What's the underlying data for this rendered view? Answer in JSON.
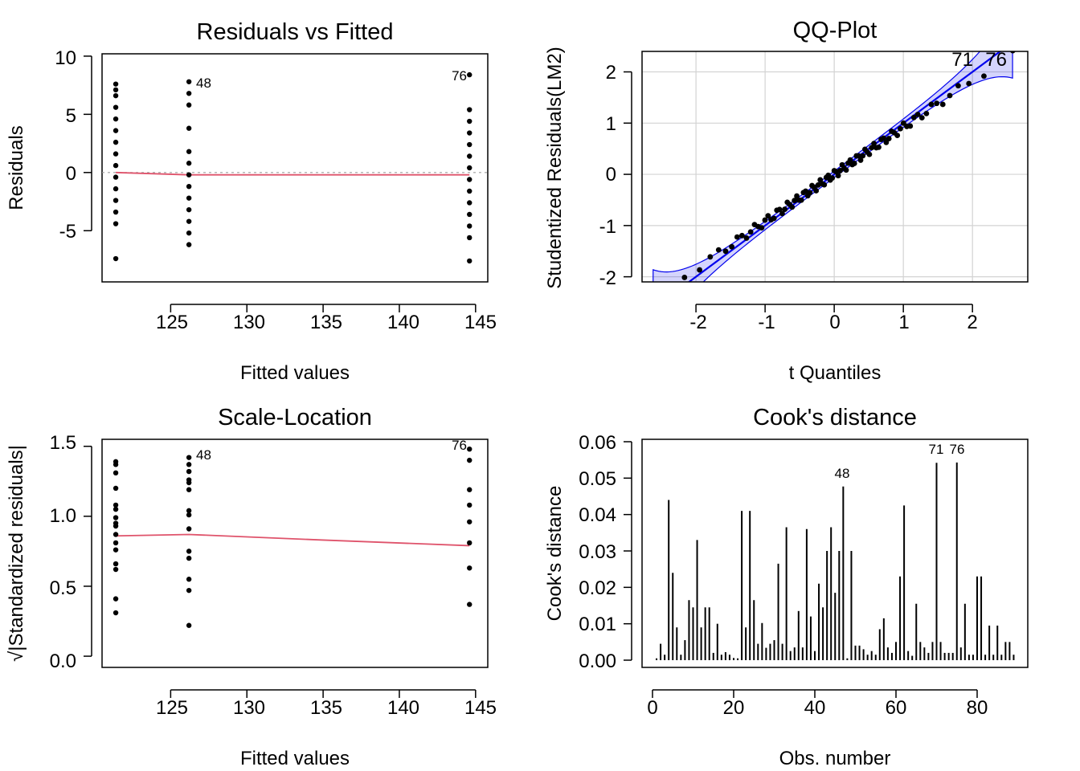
{
  "chart_data": [
    {
      "type": "scatter",
      "title": "Residuals vs Fitted",
      "xlabel": "Fitted values",
      "ylabel": "Residuals",
      "xlim": [
        120.5,
        145.8
      ],
      "ylim": [
        -9.4,
        10.2
      ],
      "xticks": [
        "125",
        "130",
        "135",
        "140",
        "145"
      ],
      "yticks": [
        "10",
        "5",
        "0",
        "-5"
      ],
      "groups": [
        {
          "x": 121.4,
          "y": [
            7.6,
            7.1,
            6.6,
            5.6,
            4.6,
            3.6,
            2.6,
            1.6,
            0.6,
            -0.4,
            -1.4,
            -2.4,
            -3.4,
            -4.4,
            -7.4
          ]
        },
        {
          "x": 126.2,
          "y": [
            7.8,
            6.8,
            5.8,
            3.8,
            1.8,
            0.8,
            -0.2,
            -1.2,
            -2.2,
            -3.2,
            -4.2,
            -5.2,
            -6.2
          ]
        },
        {
          "x": 144.6,
          "y": [
            8.4,
            5.4,
            4.4,
            3.4,
            2.4,
            1.4,
            0.4,
            -0.6,
            -1.6,
            -2.6,
            -3.6,
            -4.6,
            -5.6,
            -7.6
          ]
        }
      ],
      "labels": [
        {
          "text": "48",
          "x": 126.2,
          "y": 7.8
        },
        {
          "text": "76",
          "x": 144.6,
          "y": 8.4
        }
      ],
      "smooth_line": [
        [
          121.4,
          0.0
        ],
        [
          126.2,
          -0.2
        ],
        [
          144.6,
          -0.2
        ]
      ],
      "colors": {
        "points": "#000000",
        "smooth": "#DF536B",
        "ref": "#9E9E9E"
      }
    },
    {
      "type": "scatter",
      "title": "QQ-Plot",
      "xlabel": "t Quantiles",
      "ylabel": "Studentized Residuals(LM2)",
      "xlim": [
        -2.78,
        2.8
      ],
      "ylim": [
        -2.1,
        2.4
      ],
      "xticks": [
        "-2",
        "-1",
        "0",
        "1",
        "2"
      ],
      "yticks": [
        "2",
        "1",
        "0",
        "-1",
        "-2"
      ],
      "labels": [
        {
          "text": "71",
          "x": 2.1,
          "y": 2.22
        },
        {
          "text": "76",
          "x": 2.4,
          "y": 2.22
        }
      ],
      "grid": true,
      "colors": {
        "band": "#0000EE",
        "line": "#0000EE",
        "points": "#000000"
      }
    },
    {
      "type": "scatter",
      "title": "Scale-Location",
      "xlabel": "Fitted values",
      "ylabel": "√|Standardized residuals|",
      "xlim": [
        120.5,
        145.8
      ],
      "ylim": [
        -0.08,
        1.55
      ],
      "xticks": [
        "125",
        "130",
        "135",
        "140",
        "145"
      ],
      "yticks": [
        "1.5",
        "1.0",
        "0.5",
        "0.0"
      ],
      "groups": [
        {
          "x": 121.4,
          "y": [
            1.39,
            1.37,
            1.31,
            1.2,
            1.08,
            1.05,
            0.99,
            0.95,
            0.93,
            0.87,
            0.81,
            0.76,
            0.66,
            0.62,
            0.41,
            0.31
          ]
        },
        {
          "x": 126.2,
          "y": [
            1.42,
            1.37,
            1.32,
            1.26,
            1.24,
            1.19,
            1.04,
            1.01,
            0.91,
            0.75,
            0.7,
            0.55,
            0.47,
            0.22
          ]
        },
        {
          "x": 144.6,
          "y": [
            1.48,
            1.4,
            1.19,
            1.08,
            0.96,
            0.81,
            0.63,
            0.37
          ]
        }
      ],
      "labels": [
        {
          "text": "48",
          "x": 126.2,
          "y": 1.42
        },
        {
          "text": "76",
          "x": 144.6,
          "y": 1.48
        }
      ],
      "smooth_line": [
        [
          121.4,
          0.86
        ],
        [
          126.2,
          0.87
        ],
        [
          135.0,
          0.83
        ],
        [
          144.6,
          0.79
        ]
      ],
      "colors": {
        "points": "#000000",
        "smooth": "#DF536B"
      }
    },
    {
      "type": "bar",
      "title": "Cook's distance",
      "xlabel": "Obs. number",
      "ylabel": "Cook's distance",
      "xlim": [
        -1.5,
        91.5
      ],
      "ylim": [
        -0.0025,
        0.0612
      ],
      "xticks": [
        "0",
        "20",
        "40",
        "60",
        "80"
      ],
      "yticks": [
        "0.06",
        "0.05",
        "0.04",
        "0.03",
        "0.02",
        "0.01",
        "0.00"
      ],
      "x": [
        1,
        2,
        3,
        4,
        5,
        6,
        7,
        8,
        9,
        10,
        11,
        12,
        13,
        14,
        15,
        16,
        17,
        18,
        19,
        20,
        21,
        22,
        23,
        24,
        25,
        26,
        27,
        28,
        29,
        30,
        31,
        32,
        33,
        34,
        35,
        36,
        37,
        38,
        39,
        40,
        41,
        42,
        43,
        44,
        45,
        46,
        47,
        48,
        49,
        50,
        51,
        52,
        53,
        54,
        55,
        56,
        57,
        58,
        59,
        60,
        61,
        62,
        63,
        64,
        65,
        66,
        67,
        68,
        69,
        70,
        71,
        72,
        73,
        74,
        75,
        76,
        77,
        78,
        79,
        80,
        81,
        82,
        83,
        84,
        85,
        86,
        87,
        88,
        89
      ],
      "values": [
        0.0005,
        0.0045,
        0.0015,
        0.044,
        0.024,
        0.009,
        0.0015,
        0.0055,
        0.0165,
        0.0145,
        0.033,
        0.009,
        0.0145,
        0.0145,
        0.002,
        0.01,
        0.0015,
        0.0022,
        0.0015,
        0.0006,
        0.0005,
        0.041,
        0.009,
        0.041,
        0.0165,
        0.0045,
        0.0102,
        0.0034,
        0.0045,
        0.0055,
        0.0265,
        0.0045,
        0.0365,
        0.0025,
        0.0035,
        0.0135,
        0.0035,
        0.036,
        0.012,
        0.0025,
        0.021,
        0.0145,
        0.03,
        0.0365,
        0.0185,
        0.03,
        0.0477,
        0.0005,
        0.03,
        0.004,
        0.004,
        0.003,
        0.0015,
        0.0025,
        0.0015,
        0.0085,
        0.0115,
        0.0035,
        0.002,
        0.005,
        0.023,
        0.0425,
        0.0025,
        0.0012,
        0.0155,
        0.005,
        0.0035,
        0.002,
        0.005,
        0.0542,
        0.005,
        0.002,
        0.002,
        0.002,
        0.0543,
        0.0035,
        0.0155,
        0.0015,
        0.0015,
        0.023,
        0.023,
        0.0015,
        0.0095,
        0.0015,
        0.0095,
        0.0015,
        0.005,
        0.005,
        0.0015
      ],
      "labels": [
        {
          "text": "48",
          "x": 47,
          "y": 0.0477
        },
        {
          "text": "71",
          "x": 70,
          "y": 0.0542
        },
        {
          "text": "76",
          "x": 75,
          "y": 0.0543
        }
      ],
      "colors": {
        "bars": "#000000"
      }
    }
  ]
}
